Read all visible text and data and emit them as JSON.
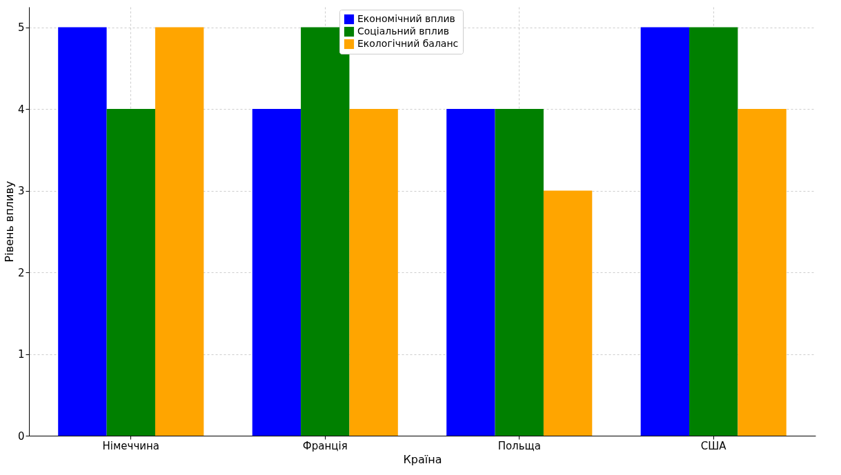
{
  "chart_data": {
    "type": "bar",
    "xlabel": "Країна",
    "ylabel": "Рівень впливу",
    "categories": [
      "Німеччина",
      "Франція",
      "Польща",
      "США"
    ],
    "series": [
      {
        "name": "Економічний вплив",
        "color": "#0000ff",
        "values": [
          5,
          4,
          4,
          5
        ]
      },
      {
        "name": "Соціальний вплив",
        "color": "#008000",
        "values": [
          4,
          5,
          4,
          5
        ]
      },
      {
        "name": "Екологічний баланс",
        "color": "#ffa500",
        "values": [
          5,
          4,
          3,
          4
        ]
      }
    ],
    "ylim": [
      0,
      5.25
    ],
    "yticks": [
      0,
      1,
      2,
      3,
      4,
      5
    ],
    "grid": true,
    "legend": "top"
  }
}
